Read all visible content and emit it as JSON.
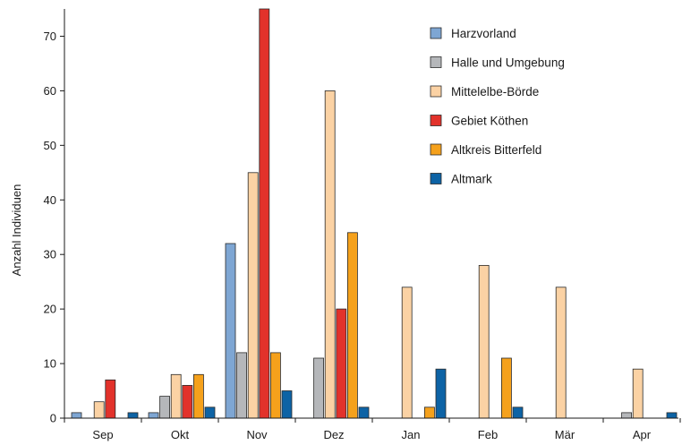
{
  "chart_data": {
    "type": "bar",
    "title": "",
    "xlabel": "",
    "ylabel": "Anzahl Individuen",
    "ylim": [
      0,
      75
    ],
    "yticks": [
      0,
      10,
      20,
      30,
      40,
      50,
      60,
      70
    ],
    "categories": [
      "Sep",
      "Okt",
      "Nov",
      "Dez",
      "Jan",
      "Feb",
      "Mär",
      "Apr"
    ],
    "legend_position": "top-right",
    "grid": false,
    "series": [
      {
        "name": "Harzvorland",
        "color": "#7ea6d3",
        "values": [
          1,
          1,
          32,
          0,
          0,
          0,
          0,
          0
        ]
      },
      {
        "name": "Halle und Umgebung",
        "color": "#b5b7ba",
        "values": [
          0,
          4,
          12,
          11,
          0,
          0,
          0,
          1
        ]
      },
      {
        "name": "Mittelelbe-Börde",
        "color": "#fbd2a4",
        "values": [
          3,
          8,
          45,
          60,
          24,
          28,
          24,
          9
        ]
      },
      {
        "name": "Gebiet Köthen",
        "color": "#e2322b",
        "values": [
          7,
          6,
          75,
          20,
          0,
          0,
          0,
          0
        ]
      },
      {
        "name": "Altkreis Bitterfeld",
        "color": "#f5a11c",
        "values": [
          0,
          8,
          12,
          34,
          2,
          11,
          0,
          0
        ]
      },
      {
        "name": "Altmark",
        "color": "#0d63a5",
        "values": [
          1,
          2,
          5,
          2,
          9,
          2,
          0,
          1
        ]
      }
    ]
  }
}
